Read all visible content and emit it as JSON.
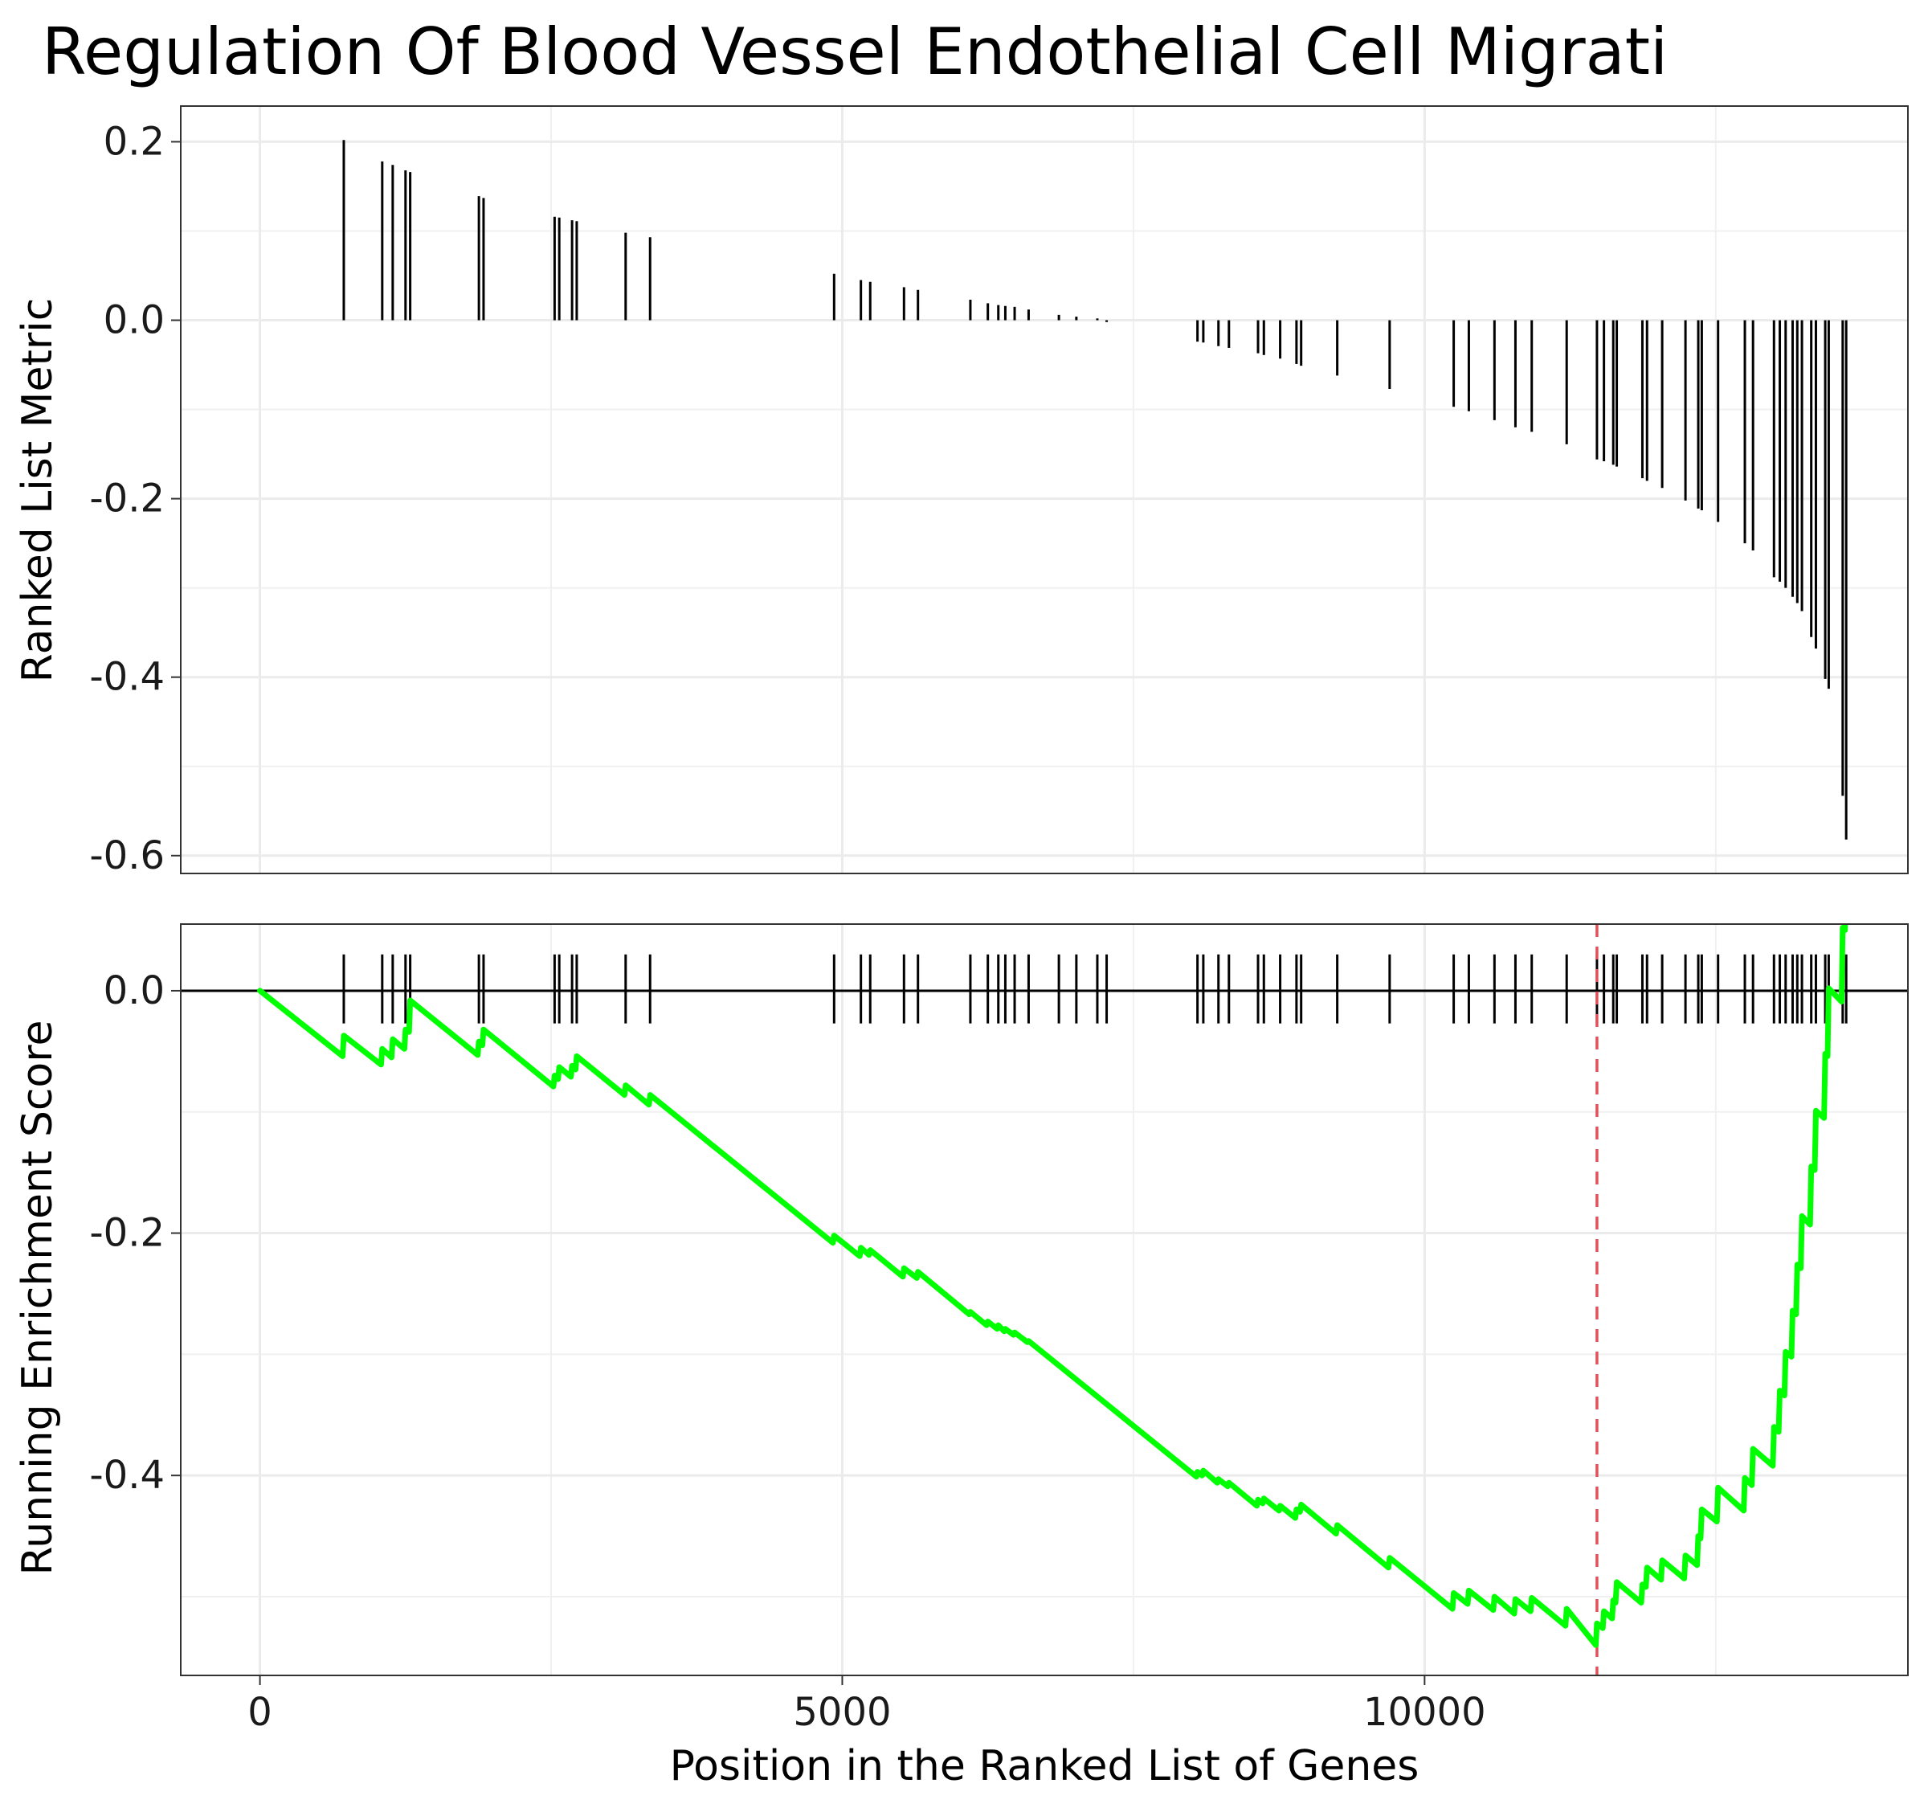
{
  "title": "Regulation Of Blood Vessel Endothelial Cell Migrati",
  "chart_data": [
    {
      "type": "bar",
      "panel": "top",
      "ylabel": "Ranked List Metric",
      "xlim": [
        -680,
        14150
      ],
      "ylim": [
        -0.62,
        0.24
      ],
      "yticks": [
        0.2,
        0.0,
        -0.2,
        -0.4,
        -0.6
      ],
      "ytick_labels": [
        "0.2",
        "0.0",
        "-0.2",
        "-0.4",
        "-0.6"
      ],
      "grid": true,
      "points": [
        [
          720,
          0.202
        ],
        [
          1050,
          0.178
        ],
        [
          1140,
          0.174
        ],
        [
          1250,
          0.168
        ],
        [
          1290,
          0.166
        ],
        [
          1880,
          0.139
        ],
        [
          1920,
          0.137
        ],
        [
          2530,
          0.116
        ],
        [
          2570,
          0.115
        ],
        [
          2680,
          0.112
        ],
        [
          2720,
          0.111
        ],
        [
          3140,
          0.098
        ],
        [
          3350,
          0.093
        ],
        [
          4930,
          0.052
        ],
        [
          5160,
          0.045
        ],
        [
          5240,
          0.043
        ],
        [
          5530,
          0.037
        ],
        [
          5650,
          0.034
        ],
        [
          6100,
          0.023
        ],
        [
          6250,
          0.019
        ],
        [
          6340,
          0.017
        ],
        [
          6400,
          0.016
        ],
        [
          6480,
          0.015
        ],
        [
          6600,
          0.012
        ],
        [
          6860,
          0.006
        ],
        [
          7010,
          0.004
        ],
        [
          7190,
          0.002
        ],
        [
          7270,
          -0.002
        ],
        [
          8050,
          -0.024
        ],
        [
          8100,
          -0.025
        ],
        [
          8230,
          -0.029
        ],
        [
          8320,
          -0.031
        ],
        [
          8570,
          -0.037
        ],
        [
          8620,
          -0.039
        ],
        [
          8760,
          -0.043
        ],
        [
          8900,
          -0.049
        ],
        [
          8940,
          -0.051
        ],
        [
          9250,
          -0.062
        ],
        [
          9700,
          -0.077
        ],
        [
          10250,
          -0.097
        ],
        [
          10380,
          -0.102
        ],
        [
          10600,
          -0.112
        ],
        [
          10780,
          -0.12
        ],
        [
          10920,
          -0.125
        ],
        [
          11220,
          -0.139
        ],
        [
          11480,
          -0.156
        ],
        [
          11540,
          -0.158
        ],
        [
          11620,
          -0.162
        ],
        [
          11650,
          -0.164
        ],
        [
          11870,
          -0.177
        ],
        [
          11910,
          -0.18
        ],
        [
          12040,
          -0.188
        ],
        [
          12240,
          -0.202
        ],
        [
          12350,
          -0.211
        ],
        [
          12380,
          -0.213
        ],
        [
          12520,
          -0.226
        ],
        [
          12750,
          -0.25
        ],
        [
          12820,
          -0.258
        ],
        [
          13000,
          -0.288
        ],
        [
          13050,
          -0.293
        ],
        [
          13100,
          -0.3
        ],
        [
          13160,
          -0.31
        ],
        [
          13200,
          -0.317
        ],
        [
          13240,
          -0.326
        ],
        [
          13320,
          -0.355
        ],
        [
          13360,
          -0.368
        ],
        [
          13440,
          -0.402
        ],
        [
          13470,
          -0.413
        ],
        [
          13590,
          -0.533
        ],
        [
          13620,
          -0.582
        ]
      ]
    },
    {
      "type": "line",
      "panel": "bottom",
      "xlabel": "Position in the Ranked List of Genes",
      "ylabel": "Running Enrichment Score",
      "xlim": [
        -680,
        14150
      ],
      "ylim": [
        -0.565,
        0.055
      ],
      "xticks": [
        0,
        5000,
        10000
      ],
      "xtick_labels": [
        "0",
        "5000",
        "10000"
      ],
      "yticks": [
        0.0,
        -0.2,
        -0.4
      ],
      "ytick_labels": [
        "0.0",
        "-0.2",
        "-0.4"
      ],
      "grid": true,
      "line_color": "#00ff00",
      "peak_marker_color": "#e0525a",
      "peak_x": 11480,
      "peak_es": -0.54,
      "hit_positions": [
        720,
        1050,
        1140,
        1250,
        1290,
        1880,
        1920,
        2530,
        2570,
        2680,
        2720,
        3140,
        3350,
        4930,
        5160,
        5240,
        5530,
        5650,
        6100,
        6250,
        6340,
        6400,
        6480,
        6600,
        6860,
        7010,
        7190,
        7270,
        8050,
        8100,
        8230,
        8320,
        8570,
        8620,
        8760,
        8900,
        8940,
        9250,
        9700,
        10250,
        10380,
        10600,
        10780,
        10920,
        11220,
        11480,
        11540,
        11620,
        11650,
        11870,
        11910,
        12040,
        12240,
        12350,
        12380,
        12520,
        12750,
        12820,
        13000,
        13050,
        13100,
        13160,
        13200,
        13240,
        13320,
        13360,
        13440,
        13470,
        13590,
        13620
      ],
      "running_es": [
        [
          0,
          0.0
        ],
        [
          710,
          -0.054
        ],
        [
          720,
          -0.037
        ],
        [
          1040,
          -0.061
        ],
        [
          1050,
          -0.048
        ],
        [
          1130,
          -0.055
        ],
        [
          1140,
          -0.04
        ],
        [
          1240,
          -0.048
        ],
        [
          1250,
          -0.032
        ],
        [
          1280,
          -0.034
        ],
        [
          1290,
          -0.008
        ],
        [
          1870,
          -0.053
        ],
        [
          1880,
          -0.042
        ],
        [
          1910,
          -0.045
        ],
        [
          1920,
          -0.032
        ],
        [
          2520,
          -0.079
        ],
        [
          2530,
          -0.07
        ],
        [
          2560,
          -0.073
        ],
        [
          2570,
          -0.063
        ],
        [
          2670,
          -0.071
        ],
        [
          2680,
          -0.062
        ],
        [
          2710,
          -0.065
        ],
        [
          2720,
          -0.054
        ],
        [
          3130,
          -0.086
        ],
        [
          3140,
          -0.078
        ],
        [
          3340,
          -0.094
        ],
        [
          3350,
          -0.086
        ],
        [
          4920,
          -0.208
        ],
        [
          4930,
          -0.202
        ],
        [
          5150,
          -0.219
        ],
        [
          5160,
          -0.212
        ],
        [
          5230,
          -0.218
        ],
        [
          5240,
          -0.214
        ],
        [
          5520,
          -0.236
        ],
        [
          5530,
          -0.229
        ],
        [
          5640,
          -0.237
        ],
        [
          5650,
          -0.232
        ],
        [
          6090,
          -0.267
        ],
        [
          6100,
          -0.265
        ],
        [
          6240,
          -0.276
        ],
        [
          6250,
          -0.273
        ],
        [
          6330,
          -0.279
        ],
        [
          6340,
          -0.276
        ],
        [
          6390,
          -0.281
        ],
        [
          6400,
          -0.279
        ],
        [
          6470,
          -0.284
        ],
        [
          6480,
          -0.282
        ],
        [
          6590,
          -0.29
        ],
        [
          6600,
          -0.289
        ],
        [
          8040,
          -0.401
        ],
        [
          8050,
          -0.397
        ],
        [
          8090,
          -0.4
        ],
        [
          8100,
          -0.396
        ],
        [
          8220,
          -0.406
        ],
        [
          8230,
          -0.403
        ],
        [
          8310,
          -0.409
        ],
        [
          8320,
          -0.406
        ],
        [
          8560,
          -0.425
        ],
        [
          8570,
          -0.42
        ],
        [
          8610,
          -0.423
        ],
        [
          8620,
          -0.419
        ],
        [
          8750,
          -0.429
        ],
        [
          8760,
          -0.425
        ],
        [
          8890,
          -0.435
        ],
        [
          8900,
          -0.428
        ],
        [
          8930,
          -0.43
        ],
        [
          8940,
          -0.424
        ],
        [
          9240,
          -0.448
        ],
        [
          9250,
          -0.441
        ],
        [
          9690,
          -0.476
        ],
        [
          9700,
          -0.468
        ],
        [
          10240,
          -0.51
        ],
        [
          10250,
          -0.497
        ],
        [
          10370,
          -0.506
        ],
        [
          10380,
          -0.495
        ],
        [
          10590,
          -0.511
        ],
        [
          10600,
          -0.5
        ],
        [
          10770,
          -0.514
        ],
        [
          10780,
          -0.502
        ],
        [
          10910,
          -0.512
        ],
        [
          10920,
          -0.501
        ],
        [
          11210,
          -0.524
        ],
        [
          11220,
          -0.51
        ],
        [
          11470,
          -0.54
        ],
        [
          11480,
          -0.522
        ],
        [
          11530,
          -0.526
        ],
        [
          11540,
          -0.512
        ],
        [
          11610,
          -0.518
        ],
        [
          11620,
          -0.503
        ],
        [
          11640,
          -0.505
        ],
        [
          11650,
          -0.488
        ],
        [
          11860,
          -0.505
        ],
        [
          11870,
          -0.49
        ],
        [
          11900,
          -0.492
        ],
        [
          11910,
          -0.476
        ],
        [
          12030,
          -0.486
        ],
        [
          12040,
          -0.47
        ],
        [
          12230,
          -0.485
        ],
        [
          12240,
          -0.466
        ],
        [
          12340,
          -0.474
        ],
        [
          12350,
          -0.45
        ],
        [
          12370,
          -0.452
        ],
        [
          12380,
          -0.428
        ],
        [
          12510,
          -0.438
        ],
        [
          12520,
          -0.41
        ],
        [
          12740,
          -0.429
        ],
        [
          12750,
          -0.402
        ],
        [
          12810,
          -0.408
        ],
        [
          12820,
          -0.378
        ],
        [
          12990,
          -0.392
        ],
        [
          13000,
          -0.36
        ],
        [
          13040,
          -0.364
        ],
        [
          13050,
          -0.33
        ],
        [
          13090,
          -0.334
        ],
        [
          13100,
          -0.298
        ],
        [
          13150,
          -0.302
        ],
        [
          13160,
          -0.264
        ],
        [
          13190,
          -0.267
        ],
        [
          13200,
          -0.226
        ],
        [
          13230,
          -0.229
        ],
        [
          13240,
          -0.186
        ],
        [
          13310,
          -0.193
        ],
        [
          13320,
          -0.145
        ],
        [
          13350,
          -0.148
        ],
        [
          13360,
          -0.099
        ],
        [
          13430,
          -0.105
        ],
        [
          13440,
          -0.052
        ],
        [
          13460,
          -0.054
        ],
        [
          13470,
          0.002
        ],
        [
          13580,
          -0.009
        ],
        [
          13590,
          0.052
        ],
        [
          13610,
          0.05
        ],
        [
          13620,
          0.121
        ],
        [
          13650,
          0.118
        ]
      ]
    }
  ]
}
